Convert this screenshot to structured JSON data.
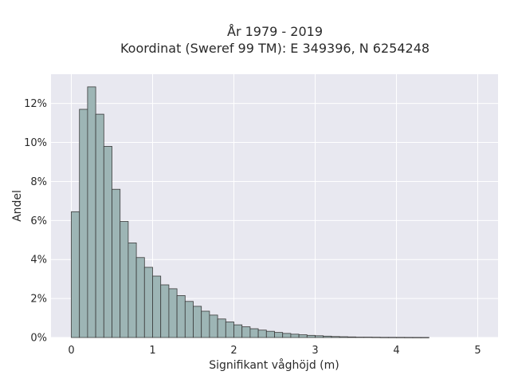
{
  "chart_data": {
    "type": "bar",
    "title": "År 1979 - 2019",
    "subtitle": "Koordinat (Sweref 99 TM): E 349396, N 6254248",
    "xlabel": "Signifikant våghöjd (m)",
    "ylabel": "Andel",
    "xlim": [
      -0.25,
      5.25
    ],
    "ylim": [
      0,
      13.5
    ],
    "xticks": [
      0,
      1,
      2,
      3,
      4,
      5
    ],
    "xtick_labels": [
      "0",
      "1",
      "2",
      "3",
      "4",
      "5"
    ],
    "yticks": [
      0,
      2,
      4,
      6,
      8,
      10,
      12
    ],
    "ytick_labels": [
      "0%",
      "2%",
      "4%",
      "6%",
      "8%",
      "10%",
      "12%"
    ],
    "bin_width": 0.1,
    "bin_start": 0.0,
    "values": [
      6.45,
      11.7,
      12.85,
      11.45,
      9.8,
      7.6,
      5.95,
      4.85,
      4.1,
      3.6,
      3.15,
      2.7,
      2.5,
      2.15,
      1.85,
      1.6,
      1.35,
      1.15,
      0.95,
      0.8,
      0.65,
      0.55,
      0.45,
      0.38,
      0.32,
      0.26,
      0.21,
      0.17,
      0.14,
      0.11,
      0.09,
      0.07,
      0.05,
      0.04,
      0.03,
      0.02,
      0.02,
      0.015,
      0.01,
      0.01,
      0.008,
      0.006,
      0.005,
      0.004
    ],
    "grid": true,
    "colors": {
      "background": "#e8e8f0",
      "bar_fill": "#9db5b5",
      "bar_edge": "#3a3a3a",
      "grid": "#ffffff"
    }
  }
}
